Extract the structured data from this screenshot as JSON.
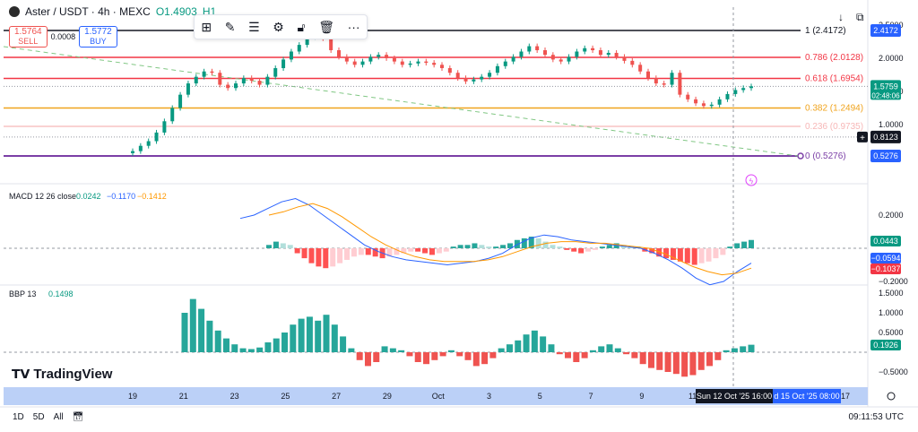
{
  "header": {
    "symbol": "Aster / USDT · 4h · MEXC",
    "ohlc": "O1.4903",
    "ohlc_more": "H1"
  },
  "trade": {
    "sell_price": "1.5764",
    "sell_label": "SELL",
    "spread": "0.0008",
    "buy_price": "1.5772",
    "buy_label": "BUY"
  },
  "toolbar": {
    "icons": [
      "grid-icon",
      "pencil-icon",
      "lines-icon",
      "gear-icon",
      "unlock-icon",
      "trash-icon",
      "more-icon"
    ]
  },
  "colors": {
    "up": "#089981",
    "down": "#ef5350",
    "macd": "#2962ff",
    "signal": "#ff9800",
    "fib_1": "#131722",
    "fib_0786": "#f23645",
    "fib_0618": "#f23645",
    "fib_0382": "#f0a31c",
    "fib_0236": "#f7b7b7",
    "fib_0": "#7b3fa6"
  },
  "chart_data": [
    {
      "type": "candlestick",
      "title": "Aster / USDT · 4h · MEXC",
      "y_axis_ticks": [
        "2.5000",
        "2.0000",
        "1.5000",
        "1.0000"
      ],
      "last_price": "1.5759",
      "countdown": "02:48:06",
      "fib_levels": [
        {
          "label": "1 (2.4172)",
          "value": 2.4172
        },
        {
          "label": "0.786 (2.0128)",
          "value": 2.0128
        },
        {
          "label": "0.618 (1.6954)",
          "value": 1.6954
        },
        {
          "label": "0.382 (1.2494)",
          "value": 1.2494
        },
        {
          "label": "0.236 (0.9735)",
          "value": 0.9735
        },
        {
          "label": "0 (0.5276)",
          "value": 0.5276
        }
      ],
      "price_badges": [
        "2.4172",
        "1.5759",
        "0.8123",
        "0.5276"
      ],
      "candles_close": [
        0.6,
        0.68,
        0.75,
        0.88,
        1.05,
        1.25,
        1.45,
        1.62,
        1.72,
        1.8,
        1.78,
        1.6,
        1.55,
        1.62,
        1.7,
        1.66,
        1.6,
        1.72,
        1.85,
        1.98,
        2.1,
        2.2,
        2.32,
        2.38,
        2.3,
        2.12,
        2.02,
        1.95,
        1.9,
        1.95,
        2.02,
        2.05,
        2.0,
        1.95,
        1.9,
        1.92,
        1.95,
        1.93,
        1.9,
        1.85,
        1.78,
        1.7,
        1.65,
        1.68,
        1.72,
        1.78,
        1.88,
        1.95,
        2.02,
        2.1,
        2.18,
        2.12,
        2.05,
        1.98,
        1.95,
        2.02,
        2.1,
        2.15,
        2.12,
        2.05,
        2.08,
        2.02,
        1.96,
        1.9,
        1.8,
        1.7,
        1.62,
        1.6,
        1.78,
        1.45,
        1.38,
        1.32,
        1.28,
        1.3,
        1.38,
        1.46,
        1.52,
        1.55,
        1.5759
      ],
      "x_ticks": [
        "19",
        "21",
        "23",
        "25",
        "27",
        "29",
        "Oct",
        "3",
        "5",
        "7",
        "9",
        "11",
        "13",
        "15",
        "17"
      ],
      "crosshair_time": "Sun 12 Oct '25   16:00",
      "crosshair_time2": "d 15 Oct '25   08:00"
    },
    {
      "type": "bar",
      "title": "MACD 12 26 close",
      "legend_values": [
        "0.0242",
        "−0.1170",
        "−0.1412"
      ],
      "y_axis_ticks": [
        "0.2000",
        "−0.2000"
      ],
      "badges": [
        "0.0443",
        "−0.0594",
        "−0.1037"
      ],
      "histogram": [
        0.02,
        0.04,
        0.03,
        0.02,
        -0.03,
        -0.06,
        -0.09,
        -0.11,
        -0.12,
        -0.11,
        -0.09,
        -0.07,
        -0.05,
        -0.04,
        -0.04,
        -0.05,
        -0.06,
        -0.05,
        -0.04,
        -0.03,
        -0.02,
        -0.02,
        -0.03,
        -0.04,
        -0.03,
        -0.02,
        0.01,
        0.02,
        0.02,
        0.03,
        0.02,
        0.01,
        0.01,
        0.02,
        0.03,
        0.05,
        0.06,
        0.07,
        0.06,
        0.04,
        0.02,
        0.01,
        -0.01,
        -0.02,
        -0.03,
        -0.02,
        -0.01,
        0.01,
        0.02,
        0.03,
        0.02,
        0.01,
        0.01,
        -0.02,
        -0.03,
        -0.05,
        -0.06,
        -0.07,
        -0.08,
        -0.09,
        -0.1,
        -0.09,
        -0.08,
        -0.06,
        -0.04,
        0.01,
        0.03,
        0.04,
        0.05
      ],
      "macd_line": [
        0.18,
        0.2,
        0.24,
        0.28,
        0.3,
        0.26,
        0.2,
        0.14,
        0.08,
        0.02,
        -0.02,
        -0.05,
        -0.07,
        -0.08,
        -0.09,
        -0.1,
        -0.09,
        -0.08,
        -0.06,
        -0.03,
        0.02,
        0.06,
        0.08,
        0.07,
        0.05,
        0.04,
        0.03,
        0.02,
        0.01,
        0.0,
        -0.03,
        -0.07,
        -0.12,
        -0.18,
        -0.22,
        -0.2,
        -0.14,
        -0.09
      ],
      "signal_line": [
        0.2,
        0.22,
        0.25,
        0.27,
        0.24,
        0.19,
        0.13,
        0.07,
        0.02,
        -0.02,
        -0.05,
        -0.07,
        -0.08,
        -0.08,
        -0.08,
        -0.07,
        -0.05,
        -0.02,
        0.01,
        0.03,
        0.04,
        0.04,
        0.03,
        0.03,
        0.02,
        0.01,
        0.0,
        -0.03,
        -0.07,
        -0.11,
        -0.14,
        -0.16,
        -0.15,
        -0.12
      ]
    },
    {
      "type": "bar",
      "title": "BBP 13",
      "legend_values": [
        "0.1498"
      ],
      "y_axis_ticks": [
        "1.5000",
        "1.0000",
        "0.5000",
        "−0.5000"
      ],
      "badges": [
        "0.1926"
      ],
      "values": [
        1.0,
        1.35,
        1.1,
        0.8,
        0.55,
        0.35,
        0.2,
        0.1,
        0.08,
        0.12,
        0.25,
        0.35,
        0.5,
        0.7,
        0.85,
        0.9,
        0.8,
        0.95,
        0.7,
        0.4,
        0.1,
        -0.2,
        -0.35,
        -0.25,
        0.15,
        0.1,
        0.05,
        -0.1,
        -0.25,
        -0.3,
        -0.2,
        -0.1,
        0.05,
        -0.1,
        -0.2,
        -0.35,
        -0.3,
        -0.15,
        0.1,
        0.2,
        0.3,
        0.45,
        0.55,
        0.4,
        0.2,
        -0.05,
        -0.15,
        -0.25,
        -0.15,
        0.05,
        0.15,
        0.2,
        0.1,
        -0.05,
        -0.15,
        -0.3,
        -0.4,
        -0.45,
        -0.5,
        -0.55,
        -0.62,
        -0.58,
        -0.45,
        -0.35,
        -0.2,
        0.05,
        0.1,
        0.15,
        0.19
      ]
    }
  ],
  "brand": "TradingView",
  "bottom": {
    "timeframes": [
      "1D",
      "5D",
      "All"
    ],
    "clock": "09:11:53 UTC"
  }
}
